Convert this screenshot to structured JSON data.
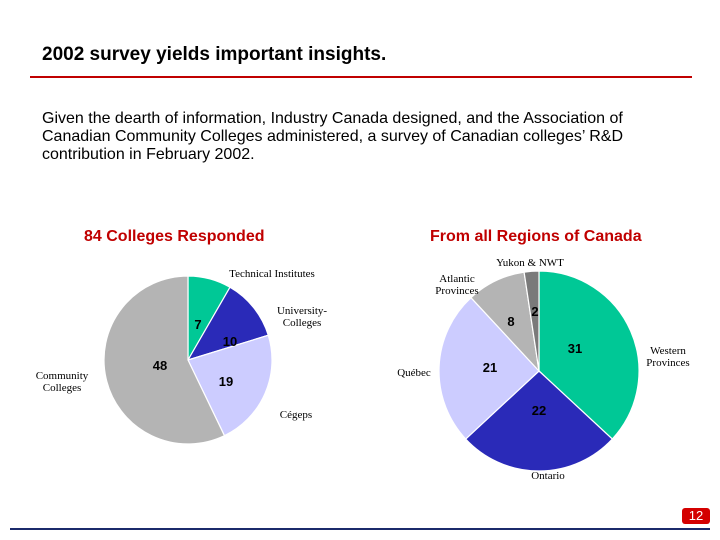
{
  "slide": {
    "title": "2002 survey yields important insights.",
    "intro": "Given the dearth of information, Industry Canada designed, and the Association of Canadian Community Colleges administered, a survey of Canadian colleges’ R&D contribution in February 2002.",
    "page_number": "12"
  },
  "colors": {
    "title_rule": "#c00000",
    "chart_title": "#c00000",
    "bottom_rule": "#1b2a6b",
    "page_badge": "#d40000"
  },
  "chart_data": [
    {
      "type": "pie",
      "title": "84 Colleges Responded",
      "start_angle_deg": 0,
      "direction": "clockwise",
      "slices": [
        {
          "label": "Technical Institutes",
          "value": 7,
          "color": "#00c896"
        },
        {
          "label": "University-Colleges",
          "value": 10,
          "color": "#2a2ab8"
        },
        {
          "label": "Cégeps",
          "value": 19,
          "color": "#ccccff"
        },
        {
          "label": "Community Colleges",
          "value": 48,
          "color": "#b4b4b4"
        }
      ]
    },
    {
      "type": "pie",
      "title": "From all Regions of Canada",
      "start_angle_deg": 0,
      "direction": "clockwise",
      "slices": [
        {
          "label": "Western Provinces",
          "value": 31,
          "color": "#00c896"
        },
        {
          "label": "Ontario",
          "value": 22,
          "color": "#2a2ab8"
        },
        {
          "label": "Québec",
          "value": 21,
          "color": "#ccccff"
        },
        {
          "label": "Atlantic Provinces",
          "value": 8,
          "color": "#b4b4b4"
        },
        {
          "label": "Yukon & NWT",
          "value": 2,
          "color": "#7a7a7a"
        }
      ]
    }
  ]
}
